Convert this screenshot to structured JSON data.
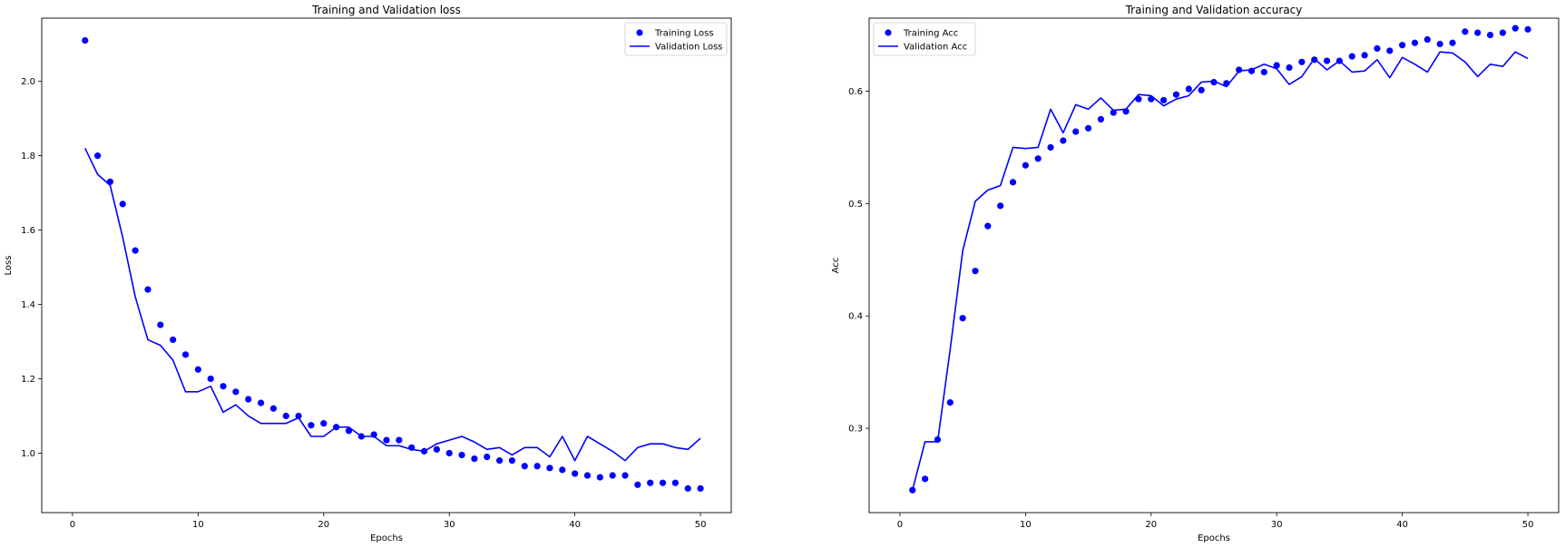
{
  "chart_data": [
    {
      "type": "line",
      "title": "Training and Validation loss",
      "xlabel": "Epochs",
      "ylabel": "Loss",
      "xlim": [
        -2.45,
        52.45
      ],
      "ylim": [
        0.84,
        2.17
      ],
      "xticks": [
        0,
        10,
        20,
        30,
        40,
        50
      ],
      "yticks": [
        1.0,
        1.2,
        1.4,
        1.6,
        1.8,
        2.0
      ],
      "ytick_decimals": 1,
      "grid": false,
      "legend_position": "top-right",
      "x": [
        1,
        2,
        3,
        4,
        5,
        6,
        7,
        8,
        9,
        10,
        11,
        12,
        13,
        14,
        15,
        16,
        17,
        18,
        19,
        20,
        21,
        22,
        23,
        24,
        25,
        26,
        27,
        28,
        29,
        30,
        31,
        32,
        33,
        34,
        35,
        36,
        37,
        38,
        39,
        40,
        41,
        42,
        43,
        44,
        45,
        46,
        47,
        48,
        49,
        50
      ],
      "series": [
        {
          "name": "Training Loss",
          "style": "dots",
          "color": "#0000ff",
          "values": [
            2.11,
            1.8,
            1.73,
            1.67,
            1.545,
            1.44,
            1.345,
            1.305,
            1.265,
            1.225,
            1.2,
            1.18,
            1.165,
            1.145,
            1.135,
            1.12,
            1.1,
            1.1,
            1.075,
            1.08,
            1.07,
            1.06,
            1.045,
            1.05,
            1.035,
            1.035,
            1.015,
            1.005,
            1.01,
            1.0,
            0.995,
            0.985,
            0.99,
            0.98,
            0.98,
            0.965,
            0.965,
            0.96,
            0.955,
            0.945,
            0.94,
            0.935,
            0.94,
            0.94,
            0.915,
            0.92,
            0.92,
            0.92,
            0.905,
            0.905
          ]
        },
        {
          "name": "Validation Loss",
          "style": "line",
          "color": "#0000ff",
          "values": [
            1.82,
            1.75,
            1.72,
            1.58,
            1.42,
            1.305,
            1.29,
            1.25,
            1.165,
            1.165,
            1.18,
            1.11,
            1.13,
            1.1,
            1.08,
            1.08,
            1.08,
            1.095,
            1.045,
            1.045,
            1.07,
            1.07,
            1.045,
            1.045,
            1.02,
            1.02,
            1.01,
            1.005,
            1.025,
            1.035,
            1.045,
            1.03,
            1.01,
            1.015,
            0.995,
            1.015,
            1.015,
            0.99,
            1.045,
            0.98,
            1.045,
            1.025,
            1.005,
            0.98,
            1.015,
            1.025,
            1.025,
            1.015,
            1.01,
            1.04
          ]
        }
      ]
    },
    {
      "type": "line",
      "title": "Training and Validation accuracy",
      "xlabel": "Epochs",
      "ylabel": "Acc",
      "xlim": [
        -2.45,
        52.45
      ],
      "ylim": [
        0.225,
        0.665
      ],
      "xticks": [
        0,
        10,
        20,
        30,
        40,
        50
      ],
      "yticks": [
        0.3,
        0.4,
        0.5,
        0.6
      ],
      "ytick_decimals": 1,
      "grid": false,
      "legend_position": "top-left",
      "x": [
        1,
        2,
        3,
        4,
        5,
        6,
        7,
        8,
        9,
        10,
        11,
        12,
        13,
        14,
        15,
        16,
        17,
        18,
        19,
        20,
        21,
        22,
        23,
        24,
        25,
        26,
        27,
        28,
        29,
        30,
        31,
        32,
        33,
        34,
        35,
        36,
        37,
        38,
        39,
        40,
        41,
        42,
        43,
        44,
        45,
        46,
        47,
        48,
        49,
        50
      ],
      "series": [
        {
          "name": "Training Acc",
          "style": "dots",
          "color": "#0000ff",
          "values": [
            0.245,
            0.255,
            0.29,
            0.323,
            0.398,
            0.44,
            0.48,
            0.498,
            0.519,
            0.534,
            0.54,
            0.55,
            0.556,
            0.564,
            0.567,
            0.575,
            0.581,
            0.582,
            0.593,
            0.593,
            0.592,
            0.597,
            0.602,
            0.601,
            0.608,
            0.607,
            0.619,
            0.618,
            0.617,
            0.623,
            0.621,
            0.626,
            0.628,
            0.627,
            0.627,
            0.631,
            0.632,
            0.638,
            0.636,
            0.641,
            0.643,
            0.646,
            0.642,
            0.643,
            0.653,
            0.652,
            0.65,
            0.652,
            0.656,
            0.655
          ]
        },
        {
          "name": "Validation Acc",
          "style": "line",
          "color": "#0000ff",
          "values": [
            0.245,
            0.288,
            0.288,
            0.37,
            0.458,
            0.502,
            0.512,
            0.516,
            0.55,
            0.549,
            0.55,
            0.584,
            0.563,
            0.588,
            0.584,
            0.594,
            0.583,
            0.584,
            0.597,
            0.596,
            0.587,
            0.593,
            0.596,
            0.608,
            0.609,
            0.604,
            0.618,
            0.619,
            0.624,
            0.62,
            0.606,
            0.613,
            0.629,
            0.619,
            0.627,
            0.617,
            0.618,
            0.628,
            0.612,
            0.63,
            0.624,
            0.617,
            0.635,
            0.634,
            0.626,
            0.613,
            0.624,
            0.622,
            0.635,
            0.629
          ]
        }
      ]
    }
  ]
}
